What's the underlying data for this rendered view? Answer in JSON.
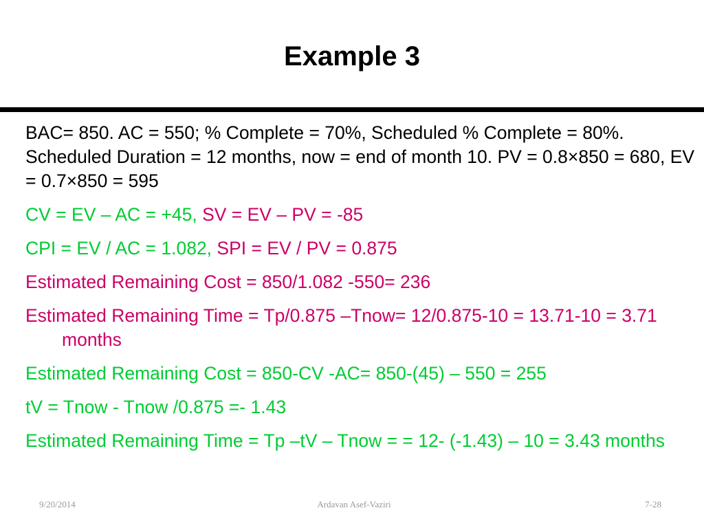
{
  "slide": {
    "title": "Example 3",
    "lines": {
      "intro": "BAC= 850. AC = 550; % Complete = 70%, Scheduled % Complete = 80%. Scheduled Duration = 12 months, now = end of month 10. PV  = 0.8×850 = 680, EV = 0.7×850 = 595",
      "cv": "CV = EV – AC = +45,",
      "sv": " SV = EV – PV = -85",
      "cpi": "CPI = EV / AC = 1.082,",
      "spi": " SPI = EV / PV = 0.875",
      "erc1": "Estimated Remaining Cost = 850/1.082 -550= 236",
      "ert1": "Estimated Remaining Time = Tp/0.875 –Tnow= 12/0.875-10 = 13.71-10 = 3.71 months",
      "erc2": "Estimated Remaining Cost = 850-CV -AC= 850-(45) – 550 = 255",
      "tv": "tV = Tnow - Tnow /0.875 =- 1.43",
      "ert2": "Estimated Remaining Time = Tp –tV – Tnow =  = 12- (-1.43) – 10 = 3.43 months"
    }
  },
  "footer": {
    "date": "9/20/2014",
    "author": "Ardavan Asef-Vaziri",
    "page": "7-28"
  },
  "colors": {
    "text": "#000000",
    "green": "#00cc33",
    "pink": "#cc0066",
    "footer": "#999999"
  }
}
